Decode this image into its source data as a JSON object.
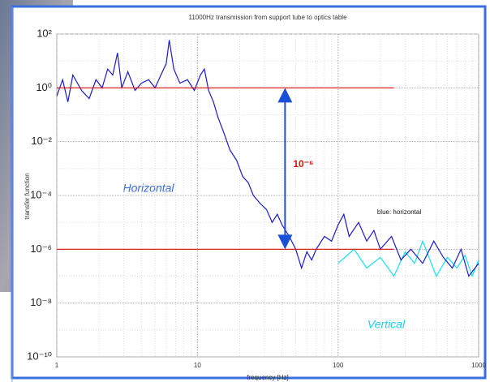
{
  "chart_data": {
    "type": "line",
    "title": "11000Hz transmission from support tube to optics table",
    "xlabel": "frequency [Hz]",
    "ylabel": "transfer function",
    "xscale": "log",
    "yscale": "log",
    "xlim": [
      1,
      1000
    ],
    "ylim": [
      1e-10,
      100
    ],
    "xticks": [
      1,
      10,
      100,
      1000
    ],
    "yticks": [
      {
        "value": 100,
        "label": "10²"
      },
      {
        "value": 1,
        "label": "10⁰"
      },
      {
        "value": 0.01,
        "label": "10⁻²"
      },
      {
        "value": 0.0001,
        "label": "10⁻⁴"
      },
      {
        "value": 1e-06,
        "label": "10⁻⁶"
      },
      {
        "value": 1e-08,
        "label": "10⁻⁸"
      },
      {
        "value": 1e-10,
        "label": "10⁻¹⁰"
      }
    ],
    "grid": true,
    "series": [
      {
        "name": "Vertical",
        "color": "#19e0f0",
        "x": [
          100,
          130,
          160,
          200,
          250,
          300,
          350,
          400,
          500,
          600,
          700,
          800,
          900,
          1000
        ],
        "values": [
          3e-07,
          1e-06,
          2e-07,
          5e-07,
          1e-07,
          8e-07,
          3e-07,
          2e-06,
          1e-07,
          5e-07,
          2e-07,
          6e-07,
          1e-07,
          4e-07
        ]
      },
      {
        "name": "Horizontal",
        "color": "#1a1ad0",
        "x": [
          1,
          1.1,
          1.2,
          1.3,
          1.5,
          1.7,
          1.9,
          2.1,
          2.3,
          2.5,
          2.7,
          2.9,
          3.2,
          3.6,
          4,
          4.5,
          5,
          5.5,
          6,
          6.3,
          6.8,
          7.5,
          8.5,
          9.5,
          10.5,
          11.2,
          12,
          13,
          14,
          15.5,
          17,
          19,
          21,
          23,
          25,
          28,
          31,
          34,
          37,
          40,
          45,
          50,
          55,
          60,
          65,
          70,
          80,
          90,
          100,
          110,
          120,
          140,
          160,
          180,
          200,
          240,
          280,
          330,
          400,
          480,
          560,
          650,
          750,
          850,
          1000
        ],
        "values": [
          0.5,
          2,
          0.3,
          3,
          0.8,
          0.4,
          2,
          1,
          5,
          3,
          20,
          1,
          4,
          0.8,
          1.5,
          2,
          1,
          3,
          8,
          60,
          5,
          1.5,
          2,
          0.8,
          3,
          5,
          0.8,
          0.3,
          0.08,
          0.02,
          0.005,
          0.002,
          0.0005,
          0.0003,
          0.0001,
          5e-05,
          3e-05,
          1e-05,
          2e-05,
          8e-06,
          3e-06,
          1e-06,
          2e-07,
          8e-07,
          4e-07,
          1e-06,
          3e-06,
          2e-06,
          8e-06,
          2e-05,
          3e-06,
          1e-05,
          2e-06,
          5e-06,
          1e-06,
          3e-06,
          4e-07,
          1e-06,
          3e-07,
          2e-06,
          5e-07,
          2e-07,
          1e-06,
          1e-07,
          3e-07
        ]
      }
    ],
    "hlines": [
      {
        "value": 1,
        "xlim": [
          1,
          250
        ],
        "color": "#e01010"
      },
      {
        "value": 1e-06,
        "xlim": [
          1,
          250
        ],
        "color": "#e01010"
      }
    ],
    "arrow": {
      "x": 42,
      "from": 1,
      "to": 1e-06,
      "label": "10⁻⁶",
      "color": "#1a4fd8"
    },
    "annotations": [
      "Horizontal",
      "Vertical",
      "blue: horizontal"
    ]
  }
}
